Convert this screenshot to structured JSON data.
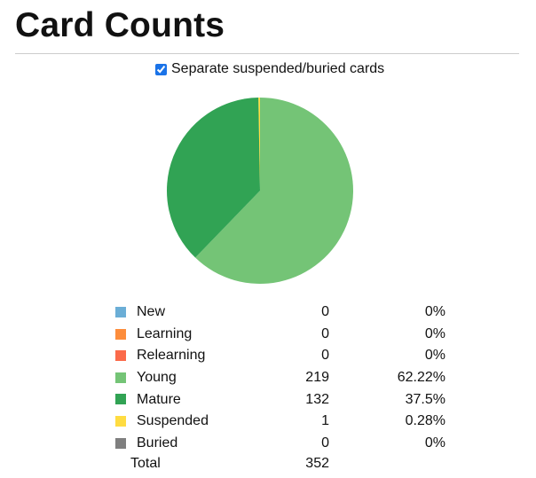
{
  "title": "Card Counts",
  "toggle": {
    "label": "Separate suspended/buried cards",
    "checked": true
  },
  "chart_data": {
    "type": "pie",
    "slices": [
      {
        "name": "New",
        "count": 0,
        "percent": "0%",
        "color": "#6baed6"
      },
      {
        "name": "Learning",
        "count": 0,
        "percent": "0%",
        "color": "#fd8d3c"
      },
      {
        "name": "Relearning",
        "count": 0,
        "percent": "0%",
        "color": "#fb6a4a"
      },
      {
        "name": "Young",
        "count": 219,
        "percent": "62.22%",
        "color": "#74c476"
      },
      {
        "name": "Mature",
        "count": 132,
        "percent": "37.5%",
        "color": "#31a354"
      },
      {
        "name": "Suspended",
        "count": 1,
        "percent": "0.28%",
        "color": "#ffdc41"
      },
      {
        "name": "Buried",
        "count": 0,
        "percent": "0%",
        "color": "#7f7f7f"
      }
    ],
    "total_label": "Total",
    "total": 352
  }
}
